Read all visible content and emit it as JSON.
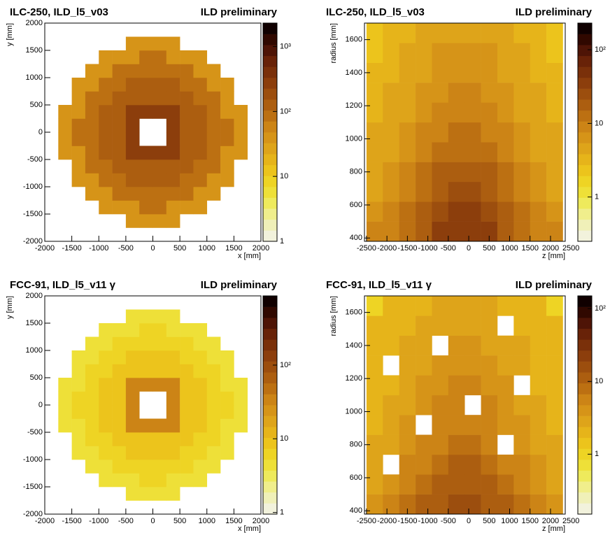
{
  "palette": [
    "#f2f2dc",
    "#f0f0b8",
    "#f0ee8c",
    "#eeea5c",
    "#eee038",
    "#eed424",
    "#ecc41c",
    "#e6b41a",
    "#dea41a",
    "#d69418",
    "#cc8416",
    "#bc7012",
    "#ac5e10",
    "#9c4e0e",
    "#8c3e0c",
    "#7a300a",
    "#682208",
    "#4e1406",
    "#300800",
    "#100000"
  ],
  "chart_data": [
    {
      "type": "heatmap",
      "title": "ILC-250, ILD_l5_v03",
      "annotation": "ILD preliminary",
      "x_label": "x [mm]",
      "y_label": "y [mm]",
      "xlim": [
        -2000,
        2000
      ],
      "ylim": [
        -2000,
        2000
      ],
      "xticks": [
        -2000,
        -1500,
        -1000,
        -500,
        0,
        500,
        1000,
        1500,
        2000
      ],
      "yticks": [
        -2000,
        -1500,
        -1000,
        -500,
        0,
        500,
        1000,
        1500,
        2000
      ],
      "zlim": [
        1,
        2300
      ],
      "zticks": [
        1,
        10,
        {
          "value": 100,
          "label": "10²"
        },
        {
          "value": 1000,
          "label": "10³"
        }
      ],
      "log_z": true,
      "xbins": [
        -2000,
        -1750,
        -1500,
        -1250,
        -1000,
        -750,
        -500,
        -250,
        0,
        250,
        500,
        750,
        1000,
        1250,
        1500,
        1750,
        2000
      ],
      "ybins": [
        -2000,
        -1750,
        -1500,
        -1250,
        -1000,
        -750,
        -500,
        -250,
        0,
        250,
        500,
        750,
        1000,
        1250,
        1500,
        1750,
        2000
      ],
      "z": [
        [
          0,
          0,
          0,
          0,
          0,
          0,
          0,
          0,
          0,
          0,
          0,
          0,
          0,
          0,
          0,
          0
        ],
        [
          0,
          0,
          0,
          0,
          0,
          0,
          40,
          40,
          40,
          40,
          0,
          0,
          0,
          0,
          0,
          0
        ],
        [
          0,
          0,
          0,
          0,
          40,
          40,
          40,
          80,
          80,
          40,
          40,
          40,
          0,
          0,
          0,
          0
        ],
        [
          0,
          0,
          0,
          40,
          40,
          80,
          80,
          80,
          80,
          80,
          80,
          40,
          40,
          0,
          0,
          0
        ],
        [
          0,
          0,
          40,
          40,
          80,
          80,
          150,
          150,
          150,
          150,
          80,
          80,
          40,
          40,
          0,
          0
        ],
        [
          0,
          0,
          40,
          80,
          80,
          150,
          150,
          150,
          150,
          150,
          150,
          80,
          80,
          40,
          0,
          0
        ],
        [
          0,
          40,
          40,
          80,
          150,
          150,
          300,
          300,
          300,
          300,
          150,
          150,
          80,
          40,
          40,
          0
        ],
        [
          0,
          40,
          80,
          80,
          150,
          150,
          300,
          0,
          0,
          300,
          150,
          150,
          80,
          80,
          40,
          0
        ],
        [
          0,
          40,
          80,
          80,
          150,
          150,
          300,
          0,
          0,
          300,
          150,
          150,
          80,
          80,
          40,
          0
        ],
        [
          0,
          40,
          40,
          80,
          150,
          150,
          300,
          300,
          300,
          300,
          150,
          150,
          80,
          40,
          40,
          0
        ],
        [
          0,
          0,
          40,
          80,
          80,
          150,
          150,
          150,
          150,
          150,
          150,
          80,
          80,
          40,
          0,
          0
        ],
        [
          0,
          0,
          40,
          40,
          80,
          80,
          150,
          150,
          150,
          150,
          80,
          80,
          40,
          40,
          0,
          0
        ],
        [
          0,
          0,
          0,
          40,
          40,
          80,
          80,
          80,
          80,
          80,
          80,
          40,
          40,
          0,
          0,
          0
        ],
        [
          0,
          0,
          0,
          0,
          40,
          40,
          40,
          80,
          80,
          40,
          40,
          40,
          0,
          0,
          0,
          0
        ],
        [
          0,
          0,
          0,
          0,
          0,
          0,
          40,
          40,
          40,
          40,
          0,
          0,
          0,
          0,
          0,
          0
        ],
        [
          0,
          0,
          0,
          0,
          0,
          0,
          0,
          0,
          0,
          0,
          0,
          0,
          0,
          0,
          0,
          0
        ]
      ]
    },
    {
      "type": "heatmap",
      "title": "ILC-250, ILD_l5_v03",
      "annotation": "ILD preliminary",
      "x_label": "z [mm]",
      "y_label": "radius [mm]",
      "xlim": [
        -2550,
        2360
      ],
      "ylim": [
        380,
        1700
      ],
      "xticks": [
        -2500,
        -2000,
        -1500,
        -1000,
        -500,
        0,
        500,
        1000,
        1500,
        2000,
        2500
      ],
      "yticks": [
        400,
        600,
        800,
        1000,
        1200,
        1400,
        1600
      ],
      "zlim": [
        0.25,
        230
      ],
      "zticks": [
        1,
        10,
        {
          "value": 100,
          "label": "10²"
        }
      ],
      "log_z": true,
      "xbins": [
        -2500,
        -2100,
        -1700,
        -1300,
        -900,
        -500,
        -100,
        300,
        700,
        1100,
        1500,
        1900,
        2300
      ],
      "ybins": [
        380,
        500,
        620,
        740,
        860,
        980,
        1100,
        1220,
        1340,
        1460,
        1580,
        1700
      ],
      "z": [
        [
          8,
          10,
          14,
          20,
          30,
          40,
          40,
          30,
          20,
          14,
          10,
          8
        ],
        [
          6,
          8,
          12,
          18,
          25,
          30,
          30,
          25,
          18,
          12,
          8,
          6
        ],
        [
          5,
          7,
          10,
          15,
          20,
          25,
          25,
          20,
          15,
          10,
          7,
          5
        ],
        [
          5,
          6,
          8,
          12,
          16,
          20,
          20,
          16,
          12,
          8,
          6,
          5
        ],
        [
          4,
          5,
          7,
          10,
          12,
          15,
          15,
          12,
          10,
          7,
          5,
          4
        ],
        [
          4,
          5,
          6,
          8,
          10,
          12,
          12,
          10,
          8,
          6,
          5,
          4
        ],
        [
          3,
          4,
          5,
          7,
          8,
          10,
          10,
          8,
          7,
          5,
          4,
          3
        ],
        [
          3,
          4,
          5,
          6,
          7,
          8,
          8,
          7,
          6,
          5,
          4,
          3
        ],
        [
          3,
          3,
          4,
          5,
          6,
          7,
          7,
          6,
          5,
          4,
          3,
          3
        ],
        [
          2,
          3,
          4,
          5,
          6,
          6,
          6,
          6,
          5,
          4,
          3,
          2
        ],
        [
          2,
          3,
          3,
          4,
          5,
          5,
          5,
          5,
          4,
          3,
          3,
          2
        ]
      ]
    },
    {
      "type": "heatmap",
      "title": "FCC-91, ILD_l5_v11 γ",
      "annotation": "ILD preliminary",
      "x_label": "x [mm]",
      "y_label": "y [mm]",
      "xlim": [
        -2000,
        2000
      ],
      "ylim": [
        -2000,
        2000
      ],
      "xticks": [
        -2000,
        -1500,
        -1000,
        -500,
        0,
        500,
        1000,
        1500,
        2000
      ],
      "yticks": [
        -2000,
        -1500,
        -1000,
        -500,
        0,
        500,
        1000,
        1500,
        2000
      ],
      "zlim": [
        0.95,
        870
      ],
      "zticks": [
        1,
        10,
        {
          "value": 100,
          "label": "10²"
        }
      ],
      "log_z": true,
      "xbins": [
        -2000,
        -1750,
        -1500,
        -1250,
        -1000,
        -750,
        -500,
        -250,
        0,
        250,
        500,
        750,
        1000,
        1250,
        1500,
        1750,
        2000
      ],
      "ybins": [
        -2000,
        -1750,
        -1500,
        -1250,
        -1000,
        -750,
        -500,
        -250,
        0,
        250,
        500,
        750,
        1000,
        1250,
        1500,
        1750,
        2000
      ],
      "z": [
        [
          0,
          0,
          0,
          0,
          0,
          0,
          0,
          0,
          0,
          0,
          0,
          0,
          0,
          0,
          0,
          0
        ],
        [
          0,
          0,
          0,
          0,
          0,
          0,
          5,
          5,
          5,
          5,
          0,
          0,
          0,
          0,
          0,
          0
        ],
        [
          0,
          0,
          0,
          0,
          5,
          5,
          5,
          6,
          6,
          5,
          5,
          5,
          0,
          0,
          0,
          0
        ],
        [
          0,
          0,
          0,
          5,
          5,
          6,
          6,
          6,
          6,
          6,
          6,
          5,
          5,
          0,
          0,
          0
        ],
        [
          0,
          0,
          5,
          5,
          6,
          6,
          8,
          8,
          8,
          8,
          6,
          6,
          5,
          5,
          0,
          0
        ],
        [
          0,
          0,
          5,
          6,
          6,
          8,
          8,
          8,
          8,
          8,
          8,
          6,
          6,
          5,
          0,
          0
        ],
        [
          0,
          5,
          5,
          6,
          8,
          8,
          40,
          40,
          40,
          40,
          8,
          8,
          6,
          5,
          5,
          0
        ],
        [
          0,
          5,
          6,
          6,
          8,
          8,
          40,
          0,
          0,
          40,
          8,
          8,
          6,
          6,
          5,
          0
        ],
        [
          0,
          5,
          6,
          6,
          8,
          8,
          40,
          0,
          0,
          40,
          8,
          8,
          6,
          6,
          5,
          0
        ],
        [
          0,
          5,
          5,
          6,
          8,
          8,
          40,
          40,
          40,
          40,
          8,
          8,
          6,
          5,
          5,
          0
        ],
        [
          0,
          0,
          5,
          6,
          6,
          8,
          8,
          8,
          8,
          8,
          8,
          6,
          6,
          5,
          0,
          0
        ],
        [
          0,
          0,
          5,
          5,
          6,
          6,
          8,
          8,
          8,
          8,
          6,
          6,
          5,
          5,
          0,
          0
        ],
        [
          0,
          0,
          0,
          5,
          5,
          6,
          6,
          6,
          6,
          6,
          6,
          5,
          5,
          0,
          0,
          0
        ],
        [
          0,
          0,
          0,
          0,
          5,
          5,
          5,
          6,
          6,
          5,
          5,
          5,
          0,
          0,
          0,
          0
        ],
        [
          0,
          0,
          0,
          0,
          0,
          0,
          5,
          5,
          5,
          5,
          0,
          0,
          0,
          0,
          0,
          0
        ],
        [
          0,
          0,
          0,
          0,
          0,
          0,
          0,
          0,
          0,
          0,
          0,
          0,
          0,
          0,
          0,
          0
        ]
      ]
    },
    {
      "type": "heatmap",
      "title": "FCC-91, ILD_l5_v11 γ",
      "annotation": "ILD preliminary",
      "x_label": "z [mm]",
      "y_label": "radius [mm]",
      "xlim": [
        -2550,
        2360
      ],
      "ylim": [
        380,
        1700
      ],
      "xticks": [
        -2500,
        -2000,
        -1500,
        -1000,
        -500,
        0,
        500,
        1000,
        1500,
        2000,
        2500
      ],
      "yticks": [
        400,
        600,
        800,
        1000,
        1200,
        1400,
        1600
      ],
      "zlim": [
        0.15,
        150
      ],
      "zticks": [
        1,
        10,
        {
          "value": 100,
          "label": "10²"
        }
      ],
      "log_z": true,
      "xbins": [
        -2500,
        -2100,
        -1700,
        -1300,
        -900,
        -500,
        -100,
        300,
        700,
        1100,
        1500,
        1900,
        2300
      ],
      "ybins": [
        380,
        500,
        620,
        740,
        860,
        980,
        1100,
        1220,
        1340,
        1460,
        1580,
        1700
      ],
      "z": [
        [
          4,
          5,
          7,
          10,
          12,
          15,
          15,
          12,
          10,
          7,
          5,
          4
        ],
        [
          3,
          4,
          6,
          8,
          10,
          12,
          12,
          10,
          8,
          6,
          4,
          3
        ],
        [
          3,
          0,
          5,
          6,
          8,
          10,
          10,
          8,
          6,
          5,
          4,
          3
        ],
        [
          3,
          3,
          4,
          5,
          6,
          8,
          8,
          6,
          0,
          4,
          3,
          3
        ],
        [
          2,
          3,
          4,
          0,
          5,
          6,
          6,
          5,
          4,
          4,
          3,
          2
        ],
        [
          2,
          3,
          3,
          4,
          5,
          5,
          0,
          5,
          4,
          3,
          3,
          2
        ],
        [
          2,
          2,
          3,
          4,
          4,
          5,
          5,
          4,
          4,
          0,
          2,
          2
        ],
        [
          2,
          0,
          3,
          3,
          4,
          4,
          4,
          4,
          3,
          3,
          2,
          2
        ],
        [
          2,
          2,
          3,
          3,
          0,
          4,
          4,
          3,
          3,
          3,
          2,
          2
        ],
        [
          2,
          2,
          2,
          3,
          3,
          3,
          3,
          3,
          0,
          2,
          2,
          2
        ],
        [
          1,
          2,
          2,
          2,
          3,
          3,
          3,
          3,
          2,
          2,
          2,
          1
        ]
      ]
    }
  ]
}
